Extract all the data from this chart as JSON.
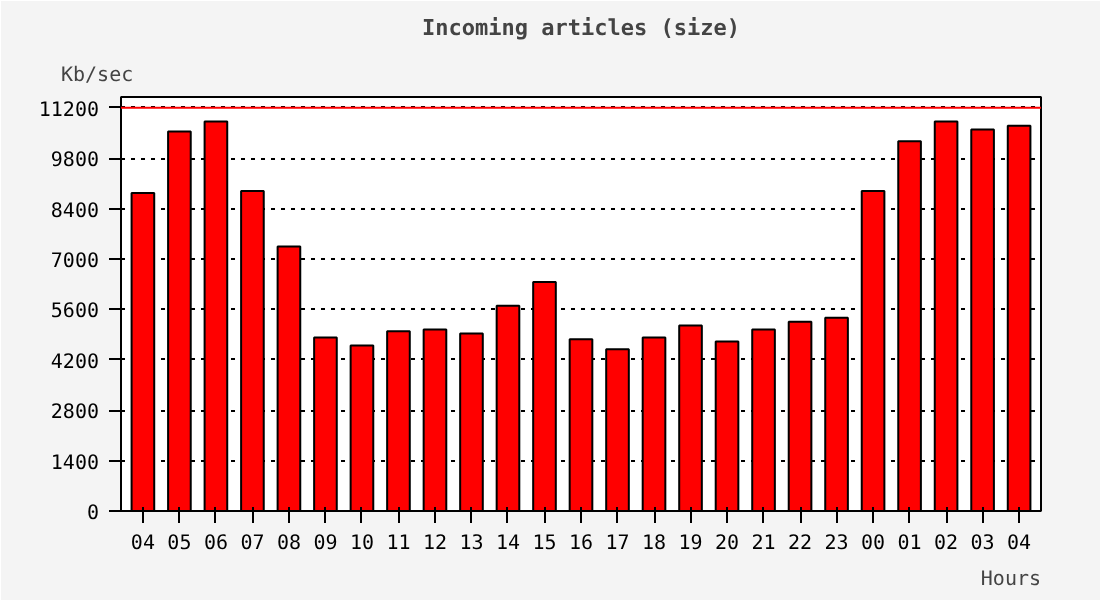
{
  "chart_data": {
    "type": "bar",
    "title": "Incoming articles (size)",
    "ylabel": "Kb/sec",
    "xlabel": "Hours",
    "categories": [
      "04",
      "05",
      "06",
      "07",
      "08",
      "09",
      "10",
      "11",
      "12",
      "13",
      "14",
      "15",
      "16",
      "17",
      "18",
      "19",
      "20",
      "21",
      "22",
      "23",
      "00",
      "01",
      "02",
      "03",
      "04"
    ],
    "values": [
      8830,
      10540,
      10820,
      8890,
      7350,
      4820,
      4600,
      4990,
      5040,
      4930,
      5700,
      6360,
      4770,
      4490,
      4820,
      5150,
      4710,
      5040,
      5260,
      5370,
      8890,
      10270,
      10820,
      10600,
      10700
    ],
    "color": "#ff0000",
    "ylim": [
      0,
      11500
    ],
    "yticks": [
      0,
      1400,
      2800,
      4200,
      5600,
      7000,
      8400,
      9800,
      11200
    ],
    "grid": "y",
    "ref_lines": [
      {
        "axis": "y",
        "value": 11200,
        "color": "#ff0000"
      }
    ]
  }
}
